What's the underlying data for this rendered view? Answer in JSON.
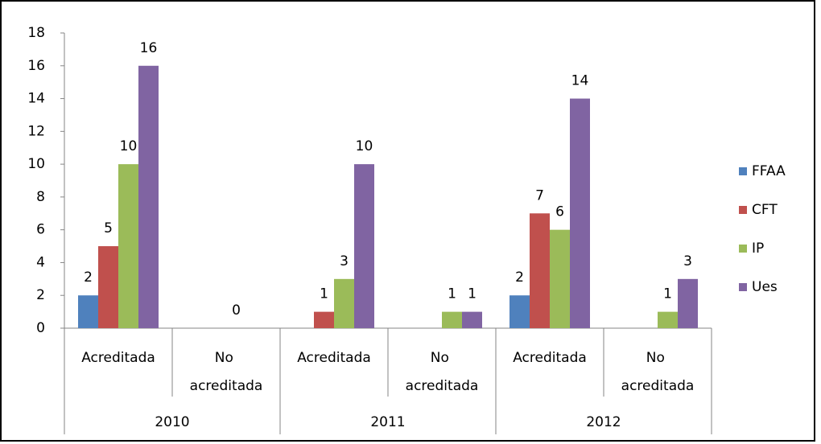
{
  "chart_data": {
    "type": "bar",
    "categories": [
      "Acreditada",
      "No acreditada",
      "Acreditada",
      "No acreditada",
      "Acreditada",
      "No acreditada"
    ],
    "groups": [
      "2010",
      "2011",
      "2012"
    ],
    "series": [
      {
        "name": "FFAA",
        "color": "#4f81bd",
        "values": [
          2,
          null,
          null,
          null,
          2,
          null
        ]
      },
      {
        "name": "CFT",
        "color": "#c0504d",
        "values": [
          5,
          null,
          1,
          null,
          7,
          null
        ]
      },
      {
        "name": "IP",
        "color": "#9bbb59",
        "values": [
          10,
          0,
          3,
          1,
          6,
          1
        ]
      },
      {
        "name": "Ues",
        "color": "#8064a2",
        "values": [
          16,
          null,
          10,
          1,
          14,
          3
        ]
      }
    ],
    "ylim": [
      0,
      18
    ],
    "yticks": [
      0,
      2,
      4,
      6,
      8,
      10,
      12,
      14,
      16,
      18
    ],
    "legend": "right",
    "grid": false
  }
}
